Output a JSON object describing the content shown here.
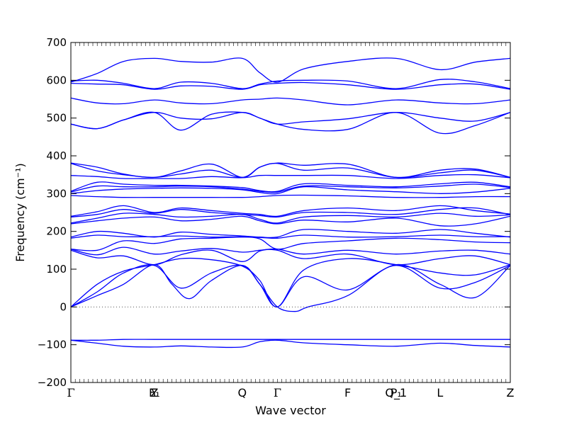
{
  "chart_data": {
    "type": "line",
    "title": "",
    "xlabel": "Wave vector",
    "ylabel": "Frequency (cm⁻¹)",
    "ylim": [
      -200,
      700
    ],
    "yticks": [
      -200,
      -100,
      0,
      100,
      200,
      300,
      400,
      500,
      600,
      700
    ],
    "xlim": [
      0,
      10
    ],
    "high_symmetry_points": [
      {
        "label": "Γ",
        "x": 0
      },
      {
        "label": "Y",
        "x": 1.9
      },
      {
        "label": "F₁",
        "x": 1.9
      },
      {
        "label": "Z",
        "x": 1.9
      },
      {
        "label": "Q",
        "x": 3.9
      },
      {
        "label": "Γ",
        "x": 4.7
      },
      {
        "label": "F",
        "x": 6.3
      },
      {
        "label": "P₁",
        "x": 7.4
      },
      {
        "label": "Q_1",
        "x": 7.4
      },
      {
        "label": "L",
        "x": 8.4
      },
      {
        "label": "Z",
        "x": 10
      }
    ],
    "zero_line": true,
    "line_color": "#0000ff",
    "grid": false,
    "series": [
      {
        "x": [
          0,
          0.6,
          1.2,
          1.9,
          2.5,
          3.2,
          3.9,
          4.3,
          4.7,
          5.3,
          6.3,
          7.4,
          8.4,
          9.2,
          10
        ],
        "values": [
          595,
          618,
          650,
          658,
          650,
          648,
          658,
          620,
          595,
          630,
          650,
          658,
          628,
          648,
          658
        ]
      },
      {
        "x": [
          0,
          0.6,
          1.2,
          1.9,
          2.5,
          3.2,
          3.9,
          4.3,
          4.7,
          5.3,
          6.3,
          7.4,
          8.4,
          9.2,
          10
        ],
        "values": [
          598,
          600,
          592,
          578,
          595,
          592,
          578,
          590,
          598,
          600,
          598,
          578,
          602,
          596,
          578
        ]
      },
      {
        "x": [
          0,
          0.6,
          1.2,
          1.9,
          2.5,
          3.2,
          3.9,
          4.3,
          4.7,
          5.3,
          6.3,
          7.4,
          8.4,
          9.2,
          10
        ],
        "values": [
          592,
          590,
          588,
          576,
          585,
          584,
          576,
          588,
          592,
          594,
          588,
          576,
          588,
          590,
          576
        ]
      },
      {
        "x": [
          0,
          0.6,
          1.2,
          1.9,
          2.5,
          3.2,
          3.9,
          4.3,
          4.7,
          5.3,
          6.3,
          7.4,
          8.4,
          9.2,
          10
        ],
        "values": [
          553,
          540,
          538,
          548,
          540,
          538,
          548,
          550,
          553,
          548,
          535,
          548,
          540,
          538,
          548
        ]
      },
      {
        "x": [
          0,
          0.6,
          1.2,
          1.9,
          2.5,
          3.2,
          3.9,
          4.3,
          4.7,
          5.3,
          6.3,
          7.4,
          8.4,
          9.2,
          10
        ],
        "values": [
          484,
          472,
          495,
          515,
          500,
          498,
          515,
          500,
          484,
          490,
          498,
          515,
          500,
          492,
          515
        ]
      },
      {
        "x": [
          0,
          0.6,
          1.2,
          1.9,
          2.5,
          3.2,
          3.9,
          4.3,
          4.7,
          5.3,
          6.3,
          7.4,
          8.4,
          9.2,
          10
        ],
        "values": [
          484,
          472,
          495,
          515,
          468,
          510,
          515,
          500,
          484,
          470,
          470,
          515,
          460,
          480,
          515
        ]
      },
      {
        "x": [
          0,
          0.6,
          1.2,
          1.9,
          2.5,
          3.2,
          3.9,
          4.3,
          4.7,
          5.3,
          6.3,
          7.4,
          8.4,
          9.2,
          10
        ],
        "values": [
          381,
          370,
          352,
          343,
          360,
          378,
          343,
          370,
          381,
          375,
          378,
          343,
          362,
          365,
          343
        ]
      },
      {
        "x": [
          0,
          0.6,
          1.2,
          1.9,
          2.5,
          3.2,
          3.9,
          4.3,
          4.7,
          5.3,
          6.3,
          7.4,
          8.4,
          9.2,
          10
        ],
        "values": [
          380,
          360,
          350,
          343,
          352,
          362,
          343,
          370,
          380,
          362,
          368,
          343,
          355,
          362,
          343
        ]
      },
      {
        "x": [
          0,
          0.6,
          1.2,
          1.9,
          2.5,
          3.2,
          3.9,
          4.3,
          4.7,
          5.3,
          6.3,
          7.4,
          8.4,
          9.2,
          10
        ],
        "values": [
          348,
          345,
          340,
          340,
          340,
          345,
          342,
          348,
          348,
          348,
          348,
          340,
          348,
          350,
          342
        ]
      },
      {
        "x": [
          0,
          0.6,
          1.2,
          1.9,
          2.5,
          3.2,
          3.9,
          4.3,
          4.7,
          5.3,
          6.3,
          7.4,
          8.4,
          9.2,
          10
        ],
        "values": [
          306,
          330,
          325,
          322,
          322,
          320,
          316,
          308,
          306,
          326,
          322,
          318,
          326,
          330,
          318
        ]
      },
      {
        "x": [
          0,
          0.6,
          1.2,
          1.9,
          2.5,
          3.2,
          3.9,
          4.3,
          4.7,
          5.3,
          6.3,
          7.4,
          8.4,
          9.2,
          10
        ],
        "values": [
          304,
          320,
          318,
          318,
          320,
          318,
          312,
          306,
          304,
          320,
          318,
          315,
          320,
          325,
          316
        ]
      },
      {
        "x": [
          0,
          0.6,
          1.2,
          1.9,
          2.5,
          3.2,
          3.9,
          4.3,
          4.7,
          5.3,
          6.3,
          7.4,
          8.4,
          9.2,
          10
        ],
        "values": [
          300,
          308,
          312,
          314,
          315,
          314,
          310,
          303,
          300,
          318,
          310,
          305,
          300,
          304,
          314
        ]
      },
      {
        "x": [
          0,
          0.6,
          1.2,
          1.9,
          2.5,
          3.2,
          3.9,
          4.3,
          4.7,
          5.3,
          6.3,
          7.4,
          8.4,
          9.2,
          10
        ],
        "values": [
          295,
          292,
          290,
          290,
          290,
          290,
          290,
          292,
          295,
          296,
          294,
          290,
          290,
          292,
          292
        ]
      },
      {
        "x": [
          0,
          0.6,
          1.2,
          1.9,
          2.5,
          3.2,
          3.9,
          4.3,
          4.7,
          5.3,
          6.3,
          7.4,
          8.4,
          9.2,
          10
        ],
        "values": [
          240,
          252,
          268,
          250,
          262,
          255,
          248,
          245,
          240,
          255,
          262,
          255,
          268,
          255,
          246
        ]
      },
      {
        "x": [
          0,
          0.6,
          1.2,
          1.9,
          2.5,
          3.2,
          3.9,
          4.3,
          4.7,
          5.3,
          6.3,
          7.4,
          8.4,
          9.2,
          10
        ],
        "values": [
          238,
          245,
          258,
          248,
          258,
          250,
          245,
          242,
          238,
          250,
          250,
          245,
          258,
          262,
          244
        ]
      },
      {
        "x": [
          0,
          0.6,
          1.2,
          1.9,
          2.5,
          3.2,
          3.9,
          4.3,
          4.7,
          5.3,
          6.3,
          7.4,
          8.4,
          9.2,
          10
        ],
        "values": [
          222,
          235,
          248,
          245,
          238,
          240,
          245,
          232,
          222,
          238,
          242,
          238,
          248,
          240,
          244
        ]
      },
      {
        "x": [
          0,
          0.6,
          1.2,
          1.9,
          2.5,
          3.2,
          3.9,
          4.3,
          4.7,
          5.3,
          6.3,
          7.4,
          8.4,
          9.2,
          10
        ],
        "values": [
          220,
          228,
          235,
          238,
          228,
          232,
          240,
          228,
          220,
          230,
          225,
          235,
          215,
          220,
          240
        ]
      },
      {
        "x": [
          0,
          0.6,
          1.2,
          1.9,
          2.5,
          3.2,
          3.9,
          4.3,
          4.7,
          5.3,
          6.3,
          7.4,
          8.4,
          9.2,
          10
        ],
        "values": [
          185,
          200,
          195,
          185,
          198,
          192,
          188,
          185,
          185,
          205,
          200,
          195,
          205,
          195,
          185
        ]
      },
      {
        "x": [
          0,
          0.6,
          1.2,
          1.9,
          2.5,
          3.2,
          3.9,
          4.3,
          4.7,
          5.3,
          6.3,
          7.4,
          8.4,
          9.2,
          10
        ],
        "values": [
          182,
          190,
          186,
          186,
          188,
          185,
          186,
          184,
          182,
          190,
          185,
          186,
          190,
          186,
          186
        ]
      },
      {
        "x": [
          0,
          0.6,
          1.2,
          1.9,
          2.5,
          3.2,
          3.9,
          4.3,
          4.7,
          5.3,
          6.3,
          7.4,
          8.4,
          9.2,
          10
        ],
        "values": [
          153,
          150,
          175,
          168,
          180,
          182,
          185,
          180,
          153,
          168,
          175,
          182,
          178,
          172,
          170
        ]
      },
      {
        "x": [
          0,
          0.6,
          1.2,
          1.9,
          2.5,
          3.2,
          3.9,
          4.3,
          4.7,
          5.3,
          6.3,
          7.4,
          8.4,
          9.2,
          10
        ],
        "values": [
          153,
          138,
          158,
          140,
          148,
          155,
          145,
          150,
          153,
          140,
          150,
          140,
          148,
          150,
          140
        ]
      },
      {
        "x": [
          0,
          0.6,
          1.2,
          1.9,
          2.5,
          3.2,
          3.9,
          4.3,
          4.7,
          5.3,
          6.3,
          7.4,
          8.4,
          9.2,
          10
        ],
        "values": [
          150,
          130,
          135,
          112,
          138,
          150,
          120,
          148,
          150,
          128,
          140,
          112,
          128,
          135,
          112
        ]
      },
      {
        "x": [
          0,
          0.6,
          1.2,
          1.9,
          2.5,
          3.2,
          3.9,
          4.3,
          4.7,
          5.3,
          6.3,
          7.4,
          8.4,
          9.2,
          10
        ],
        "values": [
          0,
          60,
          95,
          112,
          128,
          125,
          108,
          70,
          0,
          98,
          128,
          112,
          90,
          85,
          112
        ]
      },
      {
        "x": [
          0,
          0.6,
          1.2,
          1.9,
          2.5,
          3.2,
          3.9,
          4.3,
          4.7,
          5.3,
          6.3,
          7.4,
          8.4,
          9.2,
          10
        ],
        "values": [
          0,
          40,
          90,
          110,
          50,
          90,
          110,
          60,
          0,
          80,
          45,
          110,
          50,
          65,
          110
        ]
      },
      {
        "x": [
          0,
          0.6,
          1.2,
          1.9,
          2.3,
          2.7,
          3.2,
          3.9,
          4.3,
          4.7,
          5.1,
          5.4,
          6.3,
          7.4,
          8.4,
          9.2,
          10
        ],
        "values": [
          0,
          30,
          60,
          112,
          60,
          22,
          70,
          110,
          60,
          0,
          -12,
          0,
          30,
          112,
          60,
          25,
          110
        ]
      },
      {
        "x": [
          0,
          0.6,
          1.2,
          1.9,
          2.5,
          3.2,
          3.9,
          4.3,
          4.7,
          5.3,
          6.3,
          7.4,
          8.4,
          9.2,
          10
        ],
        "values": [
          -88,
          -88,
          -86,
          -86,
          -86,
          -86,
          -86,
          -86,
          -86,
          -86,
          -86,
          -86,
          -86,
          -86,
          -86
        ]
      },
      {
        "x": [
          0,
          0.6,
          1.2,
          1.9,
          2.5,
          3.2,
          3.9,
          4.3,
          4.7,
          5.3,
          6.3,
          7.4,
          8.4,
          9.2,
          10
        ],
        "values": [
          -88,
          -96,
          -104,
          -106,
          -103,
          -106,
          -106,
          -92,
          -88,
          -95,
          -100,
          -104,
          -96,
          -102,
          -106
        ]
      }
    ]
  }
}
